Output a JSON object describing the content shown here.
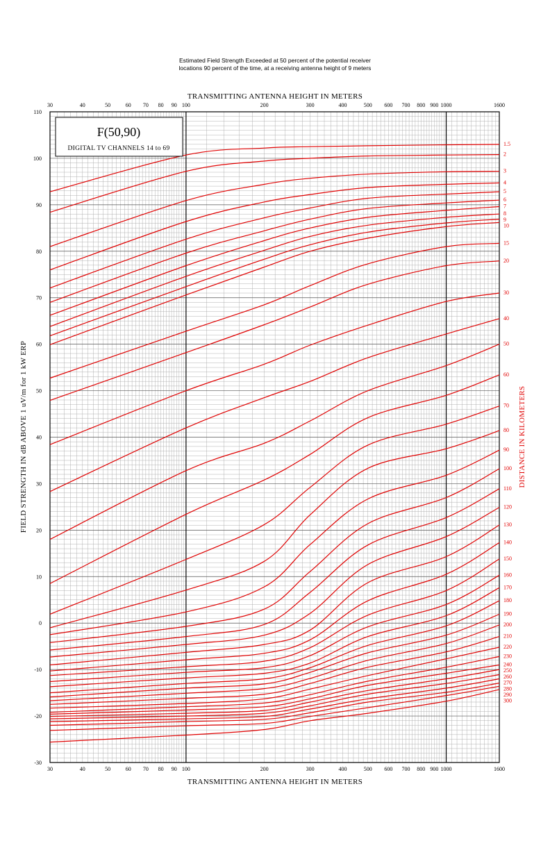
{
  "header": {
    "line1": "Estimated Field Strength Exceeded at 50 percent of the potential receiver",
    "line2": "locations 90 percent of the time, at a receiving antenna height of 9 meters"
  },
  "legend_box": {
    "title": "F(50,90)",
    "subtitle": "DIGITAL TV CHANNELS 14 to 69"
  },
  "chart_data": {
    "type": "line",
    "title": "F(50,90)",
    "subtitle": "DIGITAL TV CHANNELS 14 to 69",
    "xlabel": "TRANSMITTING ANTENNA HEIGHT IN METERS",
    "ylabel": "FIELD STRENGTH IN dB ABOVE 1 uV/m for 1 kW ERP",
    "y2label": "DISTANCE IN KILOMETERS",
    "x_scale": "log",
    "xlim": [
      30,
      1600
    ],
    "ylim": [
      -30,
      110
    ],
    "x_ticks": [
      30,
      40,
      50,
      60,
      70,
      80,
      90,
      100,
      200,
      300,
      400,
      500,
      600,
      700,
      800,
      900,
      1000,
      1600
    ],
    "y_ticks": [
      110,
      100,
      90,
      80,
      70,
      60,
      50,
      40,
      30,
      20,
      10,
      0,
      -10,
      -20,
      -30
    ],
    "grid": true,
    "x_sample_heights": [
      30,
      100,
      200,
      300,
      500,
      1000,
      1600
    ],
    "series": [
      {
        "name": "1.5",
        "values": [
          92.8,
          100.7,
          102.2,
          102.5,
          102.7,
          102.9,
          103.0
        ]
      },
      {
        "name": "2",
        "values": [
          88.4,
          97.2,
          99.4,
          100.0,
          100.5,
          100.7,
          100.8
        ]
      },
      {
        "name": "3",
        "values": [
          81.0,
          90.9,
          94.4,
          95.7,
          96.6,
          97.1,
          97.2
        ]
      },
      {
        "name": "4",
        "values": [
          76.0,
          86.4,
          90.6,
          92.2,
          93.7,
          94.4,
          94.7
        ]
      },
      {
        "name": "5",
        "values": [
          72.1,
          82.6,
          87.2,
          89.3,
          91.4,
          92.3,
          92.8
        ]
      },
      {
        "name": "6",
        "values": [
          69.0,
          79.6,
          84.4,
          86.9,
          89.2,
          90.4,
          91.0
        ]
      },
      {
        "name": "7",
        "values": [
          66.2,
          76.9,
          82.3,
          85.0,
          87.3,
          88.8,
          89.6
        ]
      },
      {
        "name": "8",
        "values": [
          63.8,
          74.6,
          80.2,
          83.2,
          85.6,
          87.3,
          88.0
        ]
      },
      {
        "name": "9",
        "values": [
          61.8,
          72.4,
          78.3,
          81.4,
          84.1,
          86.1,
          86.9
        ]
      },
      {
        "name": "10",
        "values": [
          59.9,
          70.6,
          76.6,
          80.0,
          82.8,
          85.3,
          86.2
        ]
      },
      {
        "name": "15",
        "values": [
          52.7,
          62.8,
          68.5,
          72.6,
          77.3,
          81.0,
          81.7
        ]
      },
      {
        "name": "20",
        "values": [
          47.9,
          58.2,
          64.2,
          68.0,
          72.9,
          76.9,
          77.9
        ]
      },
      {
        "name": "30",
        "values": [
          38.4,
          50.0,
          55.7,
          59.8,
          64.1,
          69.2,
          71.0
        ]
      },
      {
        "name": "40",
        "values": [
          28.3,
          42.0,
          48.5,
          52.0,
          57.1,
          62.2,
          65.5
        ]
      },
      {
        "name": "50",
        "values": [
          18.0,
          32.8,
          38.7,
          43.5,
          50.0,
          55.4,
          60.0
        ]
      },
      {
        "name": "60",
        "values": [
          8.5,
          23.4,
          30.8,
          36.3,
          44.2,
          49.0,
          53.4
        ]
      },
      {
        "name": "70",
        "values": [
          1.9,
          13.7,
          21.2,
          29.2,
          38.3,
          42.8,
          46.7
        ]
      },
      {
        "name": "80",
        "values": [
          -1.0,
          7.1,
          13.3,
          23.3,
          33.3,
          37.5,
          41.4
        ]
      },
      {
        "name": "90",
        "values": [
          -2.5,
          2.4,
          7.8,
          16.9,
          26.7,
          31.8,
          37.2
        ]
      },
      {
        "name": "100",
        "values": [
          -4.2,
          -0.7,
          3.0,
          11.1,
          21.4,
          27.0,
          33.2
        ]
      },
      {
        "name": "110",
        "values": [
          -5.8,
          -2.9,
          -0.3,
          6.6,
          16.8,
          22.7,
          28.9
        ]
      },
      {
        "name": "120",
        "values": [
          -7.3,
          -4.6,
          -2.6,
          2.1,
          12.6,
          18.6,
          24.9
        ]
      },
      {
        "name": "130",
        "values": [
          -9.0,
          -6.3,
          -4.6,
          -1.5,
          8.7,
          14.3,
          21.1
        ]
      },
      {
        "name": "140",
        "values": [
          -10.3,
          -7.9,
          -6.5,
          -3.6,
          4.8,
          10.5,
          17.3
        ]
      },
      {
        "name": "150",
        "values": [
          -11.3,
          -9.4,
          -8.2,
          -5.3,
          1.7,
          7.0,
          13.8
        ]
      },
      {
        "name": "160",
        "values": [
          -12.6,
          -10.6,
          -9.6,
          -7.0,
          -0.8,
          4.0,
          10.3
        ]
      },
      {
        "name": "170",
        "values": [
          -13.7,
          -11.8,
          -10.8,
          -8.6,
          -2.9,
          1.6,
          7.6
        ]
      },
      {
        "name": "180",
        "values": [
          -15.0,
          -13.0,
          -12.0,
          -9.6,
          -4.8,
          -0.6,
          4.8
        ]
      },
      {
        "name": "190",
        "values": [
          -15.9,
          -14.0,
          -13.1,
          -10.6,
          -6.4,
          -2.6,
          1.9
        ]
      },
      {
        "name": "200",
        "values": [
          -16.7,
          -15.1,
          -14.1,
          -11.9,
          -8.0,
          -4.4,
          -0.4
        ]
      },
      {
        "name": "210",
        "values": [
          -17.5,
          -16.2,
          -15.3,
          -13.0,
          -9.5,
          -6.2,
          -2.9
        ]
      },
      {
        "name": "220",
        "values": [
          -18.3,
          -17.3,
          -16.3,
          -14.2,
          -11.3,
          -7.7,
          -5.2
        ]
      },
      {
        "name": "230",
        "values": [
          -19.2,
          -18.0,
          -17.2,
          -15.4,
          -12.5,
          -9.5,
          -7.2
        ]
      },
      {
        "name": "240",
        "values": [
          -19.6,
          -18.7,
          -18.0,
          -16.3,
          -13.4,
          -10.8,
          -9.0
        ]
      },
      {
        "name": "250",
        "values": [
          -20.1,
          -19.4,
          -18.8,
          -17.0,
          -14.5,
          -12.0,
          -10.0
        ]
      },
      {
        "name": "260",
        "values": [
          -20.6,
          -20.0,
          -19.4,
          -17.8,
          -15.3,
          -13.0,
          -11.1
        ]
      },
      {
        "name": "270",
        "values": [
          -21.2,
          -20.6,
          -20.1,
          -18.5,
          -16.3,
          -14.0,
          -12.0
        ]
      },
      {
        "name": "280",
        "values": [
          -22.0,
          -21.2,
          -20.7,
          -19.3,
          -17.0,
          -14.9,
          -12.9
        ]
      },
      {
        "name": "290",
        "values": [
          -23.1,
          -22.1,
          -21.6,
          -20.1,
          -18.2,
          -15.6,
          -13.6
        ]
      },
      {
        "name": "300",
        "values": [
          -25.6,
          -24.1,
          -22.9,
          -21.0,
          -19.4,
          -16.8,
          -14.3
        ]
      }
    ],
    "right_labels": [
      "1.5",
      "2",
      "3",
      "4",
      "5",
      "6",
      "7",
      "8",
      "9",
      "10",
      "15",
      "20",
      "30",
      "40",
      "50",
      "60",
      "70",
      "80",
      "90",
      "100",
      "110",
      "120",
      "130",
      "140",
      "150",
      "160",
      "170",
      "180",
      "190",
      "200",
      "210",
      "220",
      "230",
      "240",
      "250",
      "260",
      "270",
      "280",
      "290",
      "300"
    ],
    "colors": {
      "curves": "#e00000",
      "grid": "#a8a8a8",
      "major_grid": "#000000"
    }
  }
}
